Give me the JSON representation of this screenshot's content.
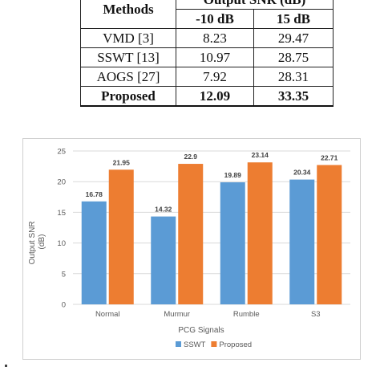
{
  "table": {
    "header": {
      "col0": "Methods",
      "group": "Output SNR (dB)",
      "col1": "-10 dB",
      "col2": "15 dB"
    },
    "rows": [
      {
        "method": "VMD [3]",
        "v1": "8.23",
        "v2": "29.47"
      },
      {
        "method": "SSWT [13]",
        "v1": "10.97",
        "v2": "28.75"
      },
      {
        "method": "AOGS [27]",
        "v1": "7.92",
        "v2": "28.31"
      },
      {
        "method": "Proposed",
        "v1": "12.09",
        "v2": "33.35"
      }
    ]
  },
  "chart_data": {
    "type": "bar",
    "categories": [
      "Normal",
      "Murmur",
      "Rumble",
      "S3"
    ],
    "series": [
      {
        "name": "SSWT",
        "values": [
          16.78,
          14.32,
          19.89,
          20.34
        ],
        "labels": [
          "16.78",
          "14.32",
          "19.89",
          "20.34"
        ],
        "color": "#5b9bd5"
      },
      {
        "name": "Proposed",
        "values": [
          21.95,
          22.9,
          23.14,
          22.71
        ],
        "labels": [
          "21.95",
          "22.9",
          "23.14",
          "22.71"
        ],
        "color": "#ed7d31"
      }
    ],
    "xlabel": "PCG Signals",
    "ylabel_lines": [
      "Output SNR",
      "(dB)"
    ],
    "ylim": [
      0,
      25
    ],
    "yticks": [
      "0",
      "5",
      "10",
      "15",
      "20",
      "25"
    ],
    "grid": true,
    "legend": "bottom"
  }
}
